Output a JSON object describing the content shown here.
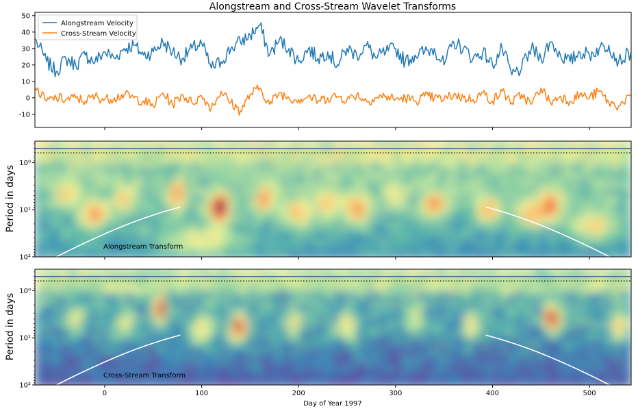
{
  "chart_data": {
    "title": "Alongstream and Cross-Stream Wavelet Transforms",
    "xlabel": "Day of Year 1997",
    "xlim": [
      -72,
      543
    ],
    "x_ticks": [
      0,
      100,
      200,
      300,
      400,
      500
    ],
    "panels": [
      {
        "id": "velocity",
        "type": "line",
        "ylim": [
          -18,
          52
        ],
        "y_ticks": [
          -10,
          0,
          10,
          20,
          30,
          40,
          50
        ],
        "legend": {
          "placement": "top-left"
        },
        "series": [
          {
            "name": "Alongstream Velocity",
            "color": "#1f77b4",
            "x": [
              -72,
              -60,
              -50,
              -40,
              -30,
              -20,
              -10,
              0,
              10,
              20,
              30,
              40,
              50,
              60,
              70,
              80,
              90,
              100,
              110,
              120,
              130,
              140,
              150,
              160,
              170,
              180,
              190,
              200,
              210,
              220,
              230,
              240,
              250,
              260,
              270,
              280,
              290,
              300,
              310,
              320,
              330,
              340,
              350,
              360,
              370,
              380,
              390,
              400,
              410,
              420,
              430,
              440,
              450,
              460,
              470,
              480,
              490,
              500,
              510,
              520,
              530,
              543
            ],
            "y": [
              36,
              22,
              16,
              24,
              20,
              26,
              22,
              28,
              24,
              30,
              32,
              26,
              28,
              34,
              28,
              24,
              30,
              33,
              18,
              22,
              30,
              34,
              38,
              44,
              26,
              35,
              30,
              22,
              30,
              24,
              28,
              20,
              30,
              26,
              32,
              24,
              28,
              30,
              22,
              26,
              28,
              30,
              20,
              34,
              30,
              24,
              28,
              20,
              30,
              14,
              18,
              30,
              24,
              34,
              26,
              22,
              28,
              26,
              30,
              32,
              22,
              28
            ]
          },
          {
            "name": "Cross-Stream Velocity",
            "color": "#ff7f0e",
            "x": [
              -72,
              -60,
              -50,
              -40,
              -30,
              -20,
              -10,
              0,
              10,
              20,
              30,
              40,
              50,
              60,
              70,
              80,
              90,
              100,
              110,
              120,
              130,
              140,
              150,
              160,
              170,
              180,
              190,
              200,
              210,
              220,
              230,
              240,
              250,
              260,
              270,
              280,
              290,
              300,
              310,
              320,
              330,
              340,
              350,
              360,
              370,
              380,
              390,
              400,
              410,
              420,
              430,
              440,
              450,
              460,
              470,
              480,
              490,
              500,
              510,
              520,
              530,
              543
            ],
            "y": [
              6,
              -2,
              0,
              -1,
              0,
              -2,
              1,
              -1,
              0,
              2,
              0,
              -2,
              -5,
              3,
              -4,
              2,
              -3,
              1,
              -6,
              4,
              -3,
              -8,
              2,
              6,
              -4,
              3,
              0,
              -1,
              1,
              -2,
              0,
              1,
              -1,
              2,
              -2,
              0,
              1,
              -1,
              0,
              -2,
              1,
              0,
              -1,
              2,
              0,
              -1,
              3,
              -2,
              4,
              -3,
              2,
              -4,
              6,
              -3,
              1,
              -2,
              2,
              0,
              4,
              -3,
              -5,
              2
            ]
          }
        ]
      },
      {
        "id": "alongstream-wavelet",
        "type": "heatmap",
        "ylabel": "Period in days",
        "yscale": "log",
        "ylim": [
          100,
          0.35
        ],
        "y_ticks": [
          1,
          10,
          100
        ],
        "y_tick_labels": [
          "10⁰",
          "10¹",
          "10²"
        ],
        "colormap": "Spectral_r",
        "annotation": "Alongstream Transform",
        "reference_lines": [
          0.5,
          0.62
        ],
        "cone_of_influence": true
      },
      {
        "id": "cross-stream-wavelet",
        "type": "heatmap",
        "ylabel": "Period in days",
        "yscale": "log",
        "ylim": [
          100,
          0.35
        ],
        "y_ticks": [
          1,
          10,
          100
        ],
        "y_tick_labels": [
          "10⁰",
          "10¹",
          "10²"
        ],
        "colormap": "Spectral_r",
        "annotation": "Cross-Stream Transform",
        "reference_lines": [
          0.5,
          0.62
        ],
        "cone_of_influence": true
      }
    ]
  }
}
